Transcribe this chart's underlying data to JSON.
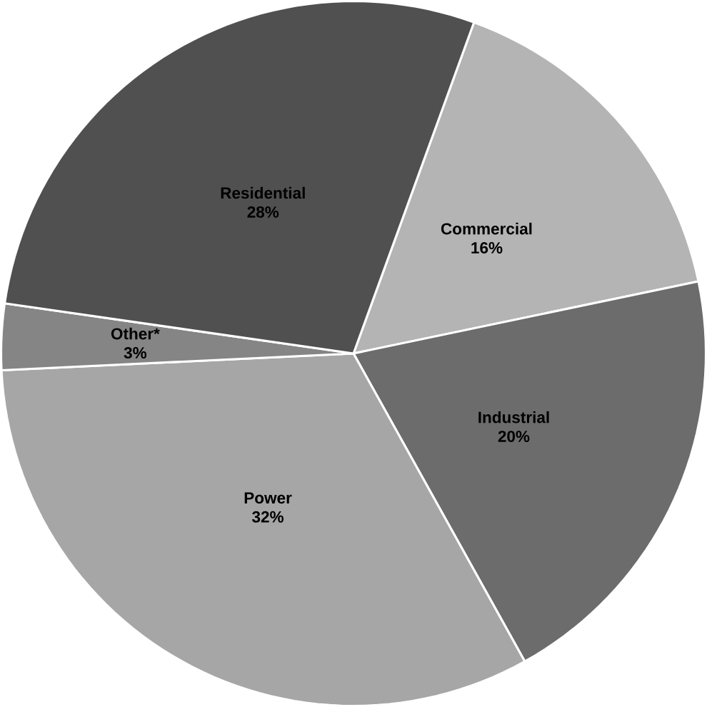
{
  "chart_data": {
    "type": "pie",
    "categories": [
      "Commercial",
      "Industrial",
      "Power",
      "Other*",
      "Residential"
    ],
    "values": [
      16,
      20,
      32,
      3,
      28
    ],
    "value_labels": [
      "16%",
      "20%",
      "32%",
      "3%",
      "28%"
    ],
    "colors": [
      "#b4b4b4",
      "#6c6c6c",
      "#a6a6a6",
      "#858585",
      "#505050"
    ]
  }
}
